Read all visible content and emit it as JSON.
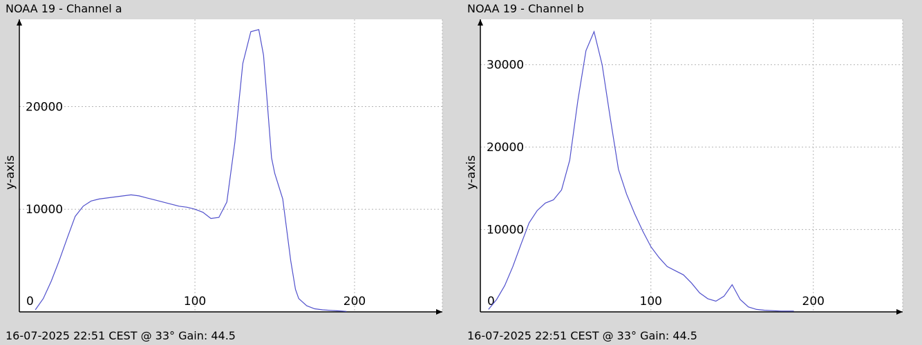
{
  "panels": {
    "a": {
      "title": "NOAA 19 - Channel a",
      "footer": "16-07-2025 22:51 CEST @ 33° Gain: 44.5"
    },
    "b": {
      "title": "NOAA 19 - Channel b",
      "footer": "16-07-2025 22:51 CEST @ 33° Gain: 44.5"
    }
  },
  "colors": {
    "background": "#d8d8d8",
    "plot_bg": "#ffffff",
    "series": "#5050cc",
    "grid": "#b3b3b3"
  },
  "chart_data": [
    {
      "type": "line",
      "title": "NOAA 19 - Channel a",
      "xlabel": "",
      "ylabel": "y-axis",
      "xlim": [
        -10,
        255
      ],
      "ylim": [
        0,
        28500
      ],
      "xticks": [
        0,
        100,
        200
      ],
      "xtick_labels": [
        "0",
        "100",
        "200"
      ],
      "yticks": [
        10000,
        20000
      ],
      "ytick_labels": [
        "10000",
        "20000"
      ],
      "grid": true,
      "series": [
        {
          "x": [
            0,
            5,
            10,
            15,
            20,
            25,
            30,
            35,
            40,
            45,
            50,
            55,
            60,
            65,
            70,
            75,
            80,
            85,
            90,
            95,
            100,
            105,
            110,
            115,
            120,
            125,
            130,
            135,
            140,
            143,
            145,
            148,
            150,
            155,
            160,
            163,
            165,
            170,
            175,
            180,
            185,
            190,
            195
          ],
          "y": [
            200,
            1300,
            3000,
            5000,
            7200,
            9300,
            10300,
            10800,
            11000,
            11100,
            11200,
            11300,
            11400,
            11300,
            11100,
            10900,
            10700,
            10500,
            10300,
            10200,
            10000,
            9700,
            9100,
            9200,
            10700,
            16500,
            24200,
            27300,
            27500,
            25000,
            21000,
            15000,
            13500,
            11000,
            5000,
            2200,
            1300,
            600,
            300,
            200,
            150,
            100,
            50
          ]
        }
      ]
    },
    {
      "type": "line",
      "title": "NOAA 19 - Channel b",
      "xlabel": "",
      "ylabel": "y-axis",
      "xlim": [
        -5,
        255
      ],
      "ylim": [
        0,
        35500
      ],
      "xticks": [
        0,
        100,
        200
      ],
      "xtick_labels": [
        "0",
        "100",
        "200"
      ],
      "yticks": [
        10000,
        20000,
        30000
      ],
      "ytick_labels": [
        "10000",
        "20000",
        "30000"
      ],
      "grid": true,
      "series": [
        {
          "x": [
            0,
            5,
            10,
            15,
            20,
            25,
            30,
            35,
            40,
            45,
            50,
            55,
            60,
            65,
            70,
            75,
            80,
            85,
            90,
            95,
            100,
            105,
            110,
            115,
            120,
            125,
            130,
            135,
            140,
            145,
            150,
            155,
            160,
            165,
            170,
            175,
            180,
            185,
            188
          ],
          "y": [
            300,
            1500,
            3200,
            5500,
            8200,
            10800,
            12300,
            13200,
            13600,
            14800,
            18400,
            25600,
            31700,
            34000,
            30000,
            23500,
            17300,
            14300,
            11900,
            9800,
            7900,
            6600,
            5500,
            5000,
            4500,
            3500,
            2300,
            1600,
            1300,
            1900,
            3300,
            1500,
            600,
            300,
            200,
            150,
            100,
            100,
            100
          ]
        }
      ]
    }
  ]
}
